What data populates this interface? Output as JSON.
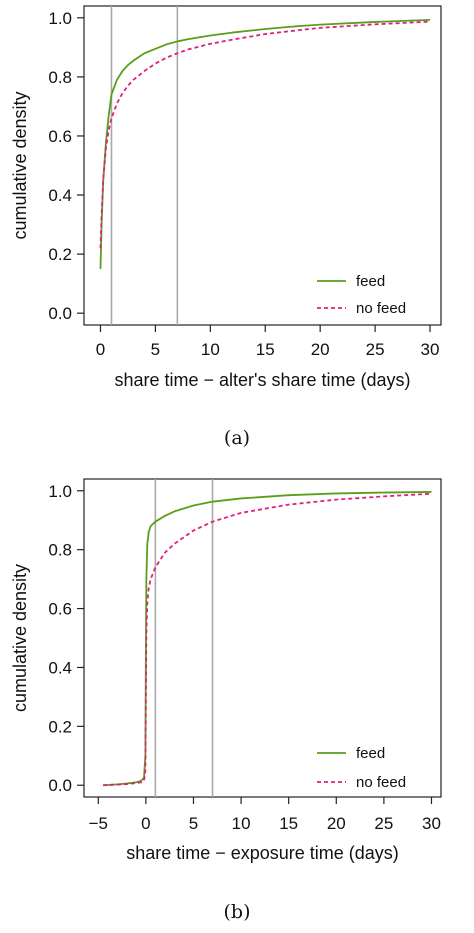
{
  "chart_data": [
    {
      "type": "line",
      "caption": "(a)",
      "xlabel": "share time − alter's share time (days)",
      "ylabel": "cumulative density",
      "xlim": [
        -1.5,
        31
      ],
      "ylim": [
        -0.04,
        1.04
      ],
      "xticks": [
        0,
        5,
        10,
        15,
        20,
        25,
        30
      ],
      "yticks": [
        0.0,
        0.2,
        0.4,
        0.6,
        0.8,
        1.0
      ],
      "ytick_labels": [
        "0.0",
        "0.2",
        "0.4",
        "0.6",
        "0.8",
        "1.0"
      ],
      "vlines": [
        1,
        7
      ],
      "legend": {
        "position": "bottom-right"
      },
      "series": [
        {
          "name": "feed",
          "style": "solid",
          "color": "#5a9e1e",
          "x": [
            0,
            0.1,
            0.25,
            0.5,
            0.75,
            1,
            1.5,
            2,
            2.5,
            3,
            4,
            5,
            6,
            7,
            8,
            10,
            12,
            15,
            18,
            20,
            25,
            30
          ],
          "y": [
            0.15,
            0.3,
            0.45,
            0.58,
            0.67,
            0.74,
            0.79,
            0.82,
            0.84,
            0.855,
            0.88,
            0.895,
            0.91,
            0.92,
            0.928,
            0.94,
            0.95,
            0.962,
            0.972,
            0.977,
            0.986,
            0.993
          ]
        },
        {
          "name": "no feed",
          "style": "dashed",
          "color": "#e0207a",
          "x": [
            0,
            0.1,
            0.25,
            0.5,
            0.75,
            1,
            1.5,
            2,
            2.5,
            3,
            4,
            5,
            6,
            7,
            8,
            10,
            12,
            15,
            18,
            20,
            25,
            30
          ],
          "y": [
            0.22,
            0.33,
            0.45,
            0.56,
            0.62,
            0.66,
            0.71,
            0.745,
            0.77,
            0.79,
            0.82,
            0.845,
            0.865,
            0.88,
            0.893,
            0.912,
            0.926,
            0.945,
            0.958,
            0.966,
            0.978,
            0.987
          ]
        }
      ]
    },
    {
      "type": "line",
      "caption": "(b)",
      "xlabel": "share time − exposure time (days)",
      "ylabel": "cumulative density",
      "xlim": [
        -6.5,
        31
      ],
      "ylim": [
        -0.04,
        1.04
      ],
      "xticks": [
        -5,
        0,
        5,
        10,
        15,
        20,
        25,
        30
      ],
      "xtick_labels": [
        "−5",
        "0",
        "5",
        "10",
        "15",
        "20",
        "25",
        "30"
      ],
      "yticks": [
        0.0,
        0.2,
        0.4,
        0.6,
        0.8,
        1.0
      ],
      "ytick_labels": [
        "0.0",
        "0.2",
        "0.4",
        "0.6",
        "0.8",
        "1.0"
      ],
      "vlines": [
        1,
        7
      ],
      "legend": {
        "position": "bottom-right"
      },
      "series": [
        {
          "name": "feed",
          "style": "solid",
          "color": "#5a9e1e",
          "x": [
            -4.5,
            -3,
            -2,
            -1,
            -0.5,
            -0.2,
            -0.05,
            0,
            0.05,
            0.15,
            0.3,
            0.5,
            1,
            2,
            3,
            5,
            7,
            10,
            15,
            20,
            25,
            30
          ],
          "y": [
            0.0,
            0.003,
            0.006,
            0.01,
            0.015,
            0.025,
            0.1,
            0.45,
            0.7,
            0.82,
            0.86,
            0.88,
            0.895,
            0.915,
            0.93,
            0.95,
            0.963,
            0.974,
            0.985,
            0.991,
            0.994,
            0.996
          ]
        },
        {
          "name": "no feed",
          "style": "dashed",
          "color": "#e0207a",
          "x": [
            -4.5,
            -3,
            -2,
            -1,
            -0.5,
            -0.2,
            -0.05,
            0,
            0.05,
            0.15,
            0.3,
            0.5,
            1,
            2,
            3,
            5,
            7,
            10,
            15,
            20,
            25,
            30
          ],
          "y": [
            0.0,
            0.002,
            0.004,
            0.007,
            0.01,
            0.015,
            0.05,
            0.3,
            0.52,
            0.62,
            0.67,
            0.7,
            0.74,
            0.79,
            0.82,
            0.865,
            0.895,
            0.925,
            0.953,
            0.97,
            0.981,
            0.99
          ]
        }
      ]
    }
  ]
}
